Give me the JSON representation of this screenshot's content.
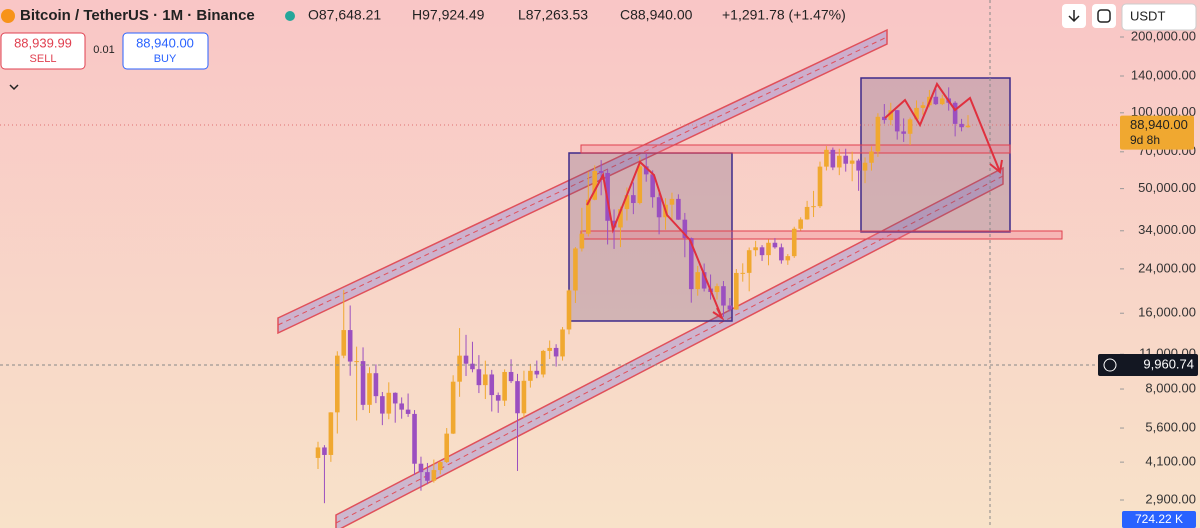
{
  "header": {
    "symbol": "Bitcoin / TetherUS · 1M · Binance",
    "open": "O87,648.21",
    "high": "H97,924.49",
    "low": "L87,263.53",
    "close": "C88,940.00",
    "change": "+1,291.78 (+1.47%)",
    "currency": "USDT"
  },
  "trade": {
    "sell_price": "88,939.99",
    "sell": "SELL",
    "spread": "0.01",
    "buy_price": "88,940.00",
    "buy": "BUY"
  },
  "chart_data": {
    "type": "candlestick",
    "open": [
      4261,
      4689,
      4378,
      6463,
      10855,
      13716,
      10285,
      10326,
      6923,
      9246,
      7495,
      6391,
      7730,
      7011,
      6626,
      6371,
      4041,
      3742,
      3458,
      3813,
      4103,
      5321,
      8555,
      10855,
      10085,
      9588,
      8289,
      9140,
      7569,
      7193,
      9349,
      8599,
      6410,
      8625,
      9448,
      9138,
      11336,
      11650,
      10777,
      13792,
      19695,
      28923,
      33092,
      45135,
      58740,
      57694,
      37253,
      35045,
      41461,
      47100,
      43824,
      61300,
      56950,
      46216,
      38466,
      43160,
      45510,
      37630,
      31801,
      19942,
      23293,
      20050,
      19423,
      20490,
      17164,
      16542,
      23125,
      23141,
      28465,
      29233,
      27210,
      30472,
      29232,
      25941,
      26962,
      34639,
      37723,
      42283,
      42582,
      61130,
      71280,
      60672,
      67540,
      62772,
      64628,
      58974,
      63327,
      70215,
      96407,
      93576,
      102429,
      84350,
      82550,
      94172,
      104591,
      107135,
      115764,
      108246,
      114048,
      109608,
      90360,
      87648.21
    ],
    "high": [
      4939,
      4789,
      6470,
      11300,
      19798,
      17176,
      11786,
      11710,
      9765,
      10020,
      7786,
      8507,
      7760,
      7410,
      7680,
      6600,
      4310,
      4069,
      4198,
      4140,
      5600,
      9074,
      13970,
      13130,
      12325,
      10905,
      10370,
      9530,
      7750,
      9578,
      10500,
      9188,
      9460,
      10067,
      10380,
      11444,
      12468,
      12050,
      14100,
      19863,
      29300,
      41950,
      58352,
      61844,
      64855,
      59592,
      41330,
      42448,
      50500,
      52920,
      67000,
      69000,
      59053,
      47990,
      45821,
      48189,
      47444,
      40023,
      31982,
      24668,
      25211,
      22799,
      20988,
      21480,
      18387,
      23960,
      25250,
      29184,
      31000,
      29820,
      31431,
      31804,
      30244,
      27488,
      35280,
      38450,
      44700,
      48969,
      64000,
      73777,
      72797,
      71979,
      71997,
      70079,
      65660,
      66500,
      73620,
      99588,
      108353,
      109588,
      102500,
      95000,
      95758,
      111980,
      110530,
      123218,
      124474,
      117900,
      126200,
      111190,
      94600,
      97924.49
    ],
    "low": [
      3850,
      2817,
      4110,
      5325,
      10600,
      9035,
      6000,
      6600,
      6425,
      7032,
      5750,
      6070,
      5880,
      6100,
      6200,
      3652,
      3156,
      3349,
      3400,
      3670,
      4067,
      5300,
      7450,
      9010,
      9320,
      7710,
      7300,
      6515,
      6435,
      6850,
      8450,
      3782,
      6150,
      8106,
      8833,
      8893,
      10525,
      9825,
      10376,
      13195,
      17572,
      28130,
      32296,
      44950,
      47044,
      30000,
      28805,
      29278,
      37332,
      39600,
      43283,
      53256,
      42000,
      32917,
      34322,
      37155,
      37578,
      26700,
      17622,
      18782,
      19520,
      18125,
      18132,
      15476,
      16256,
      16499,
      21351,
      19549,
      26942,
      25811,
      24800,
      28861,
      25166,
      24901,
      26538,
      34097,
      37615,
      38555,
      41884,
      59005,
      59191,
      56552,
      58402,
      53485,
      49000,
      52550,
      58946,
      66835,
      90500,
      89256,
      78258,
      76606,
      74508,
      93377,
      98200,
      105100,
      107350,
      107255,
      102000,
      80600,
      84400,
      87263.53
    ],
    "close": [
      4689,
      4378,
      6463,
      10855,
      13716,
      10285,
      10326,
      6923,
      9246,
      7495,
      6391,
      7730,
      7011,
      6626,
      6371,
      4041,
      3742,
      3458,
      3813,
      4103,
      5321,
      8555,
      10855,
      10085,
      9588,
      8289,
      9140,
      7569,
      7193,
      9349,
      8599,
      6410,
      8625,
      9448,
      9138,
      11336,
      11650,
      10777,
      13792,
      19695,
      28923,
      33092,
      45135,
      58740,
      57694,
      37253,
      35045,
      41461,
      47100,
      43824,
      61300,
      56950,
      46216,
      38466,
      43160,
      45510,
      37630,
      31801,
      19942,
      23293,
      20050,
      19423,
      20490,
      17164,
      16542,
      23125,
      23141,
      28465,
      29233,
      27210,
      30472,
      29232,
      25941,
      26962,
      34639,
      37723,
      42283,
      42582,
      61130,
      71280,
      60672,
      67540,
      62772,
      64628,
      58974,
      63327,
      70215,
      96407,
      93576,
      102429,
      84350,
      82550,
      94172,
      104591,
      107135,
      115764,
      108246,
      114048,
      109608,
      90360,
      87648,
      88940
    ],
    "up_color": "#f0a830",
    "down_color": "#9b4fc0",
    "log_scale": true,
    "ylim": [
      2245,
      280500
    ],
    "yticks": [
      {
        "value": 200000,
        "label": "200,000.00"
      },
      {
        "value": 140000,
        "label": "140,000.00"
      },
      {
        "value": 100000,
        "label": "100,000.00"
      },
      {
        "value": 70000,
        "label": "70,000.00"
      },
      {
        "value": 50000,
        "label": "50,000.00"
      },
      {
        "value": 34000,
        "label": "34,000.00"
      },
      {
        "value": 24000,
        "label": "24,000.00"
      },
      {
        "value": 16000,
        "label": "16,000.00"
      },
      {
        "value": 11000,
        "label": "11,000.00"
      },
      {
        "value": 8000,
        "label": "8,000.00"
      },
      {
        "value": 5600,
        "label": "5,600.00"
      },
      {
        "value": 4100,
        "label": "4,100.00"
      },
      {
        "value": 2900,
        "label": "2,900.00"
      }
    ],
    "last_price_label": "88,940.00",
    "countdown": "9d 8h",
    "crosshair": {
      "value": 9960.74,
      "label": "9,960.74"
    },
    "volume_label": "724.22 K"
  }
}
